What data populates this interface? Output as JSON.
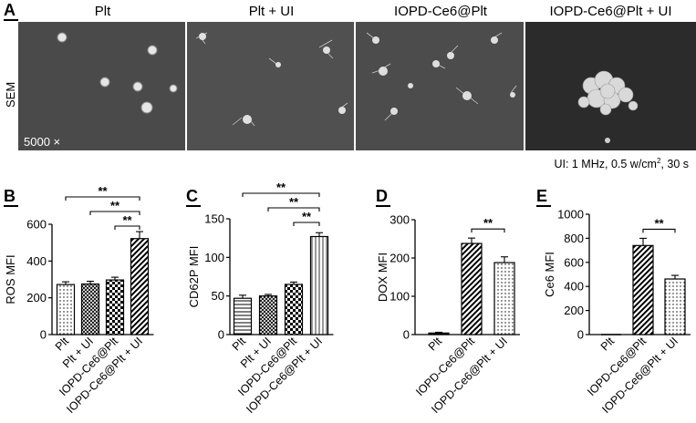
{
  "panel_a": {
    "letter": "A",
    "row_label": "SEM",
    "magnification": "5000 ×",
    "columns": [
      "Plt",
      "Plt + UI",
      "IOPD-Ce6@Plt",
      "IOPD-Ce6@Plt + UI"
    ],
    "ui_condition_prefix": "UI: 1 MHz, 0.5 w/cm",
    "ui_condition_sup": "2",
    "ui_condition_suffix": ", 30 s"
  },
  "colors": {
    "sem_gray": "#4d4d4d",
    "sem_dark": "#2b2b2b",
    "bar_edge": "#000000"
  },
  "chart_data": [
    {
      "panel": "B",
      "type": "bar",
      "categories": [
        "Plt",
        "Plt + UI",
        "IOPD-Ce6@Plt",
        "IOPD-Ce6@Plt + UI"
      ],
      "values": [
        272,
        275,
        297,
        522
      ],
      "errors": [
        15,
        15,
        15,
        38
      ],
      "patterns": [
        "dots",
        "crosshatch",
        "checker",
        "diagonal"
      ],
      "ylabel": "ROS MFI",
      "ylim": [
        0,
        600
      ],
      "yticks": [
        0,
        200,
        400,
        600
      ],
      "significance": [
        {
          "from": 0,
          "to": 3,
          "label": "**"
        },
        {
          "from": 1,
          "to": 3,
          "label": "**"
        },
        {
          "from": 2,
          "to": 3,
          "label": "**"
        }
      ]
    },
    {
      "panel": "C",
      "type": "bar",
      "categories": [
        "Plt",
        "Plt + UI",
        "IOPD-Ce6@Plt",
        "IOPD-Ce6@Plt + UI"
      ],
      "values": [
        47,
        50,
        65,
        127
      ],
      "errors": [
        4,
        2,
        3,
        5
      ],
      "patterns": [
        "hstripes",
        "crosshatch",
        "checker",
        "vstripes"
      ],
      "ylabel": "CD62P MFI",
      "ylim": [
        0,
        150
      ],
      "yticks": [
        0,
        50,
        100,
        150
      ],
      "significance": [
        {
          "from": 0,
          "to": 3,
          "label": "**"
        },
        {
          "from": 1,
          "to": 3,
          "label": "**"
        },
        {
          "from": 2,
          "to": 3,
          "label": "**"
        }
      ]
    },
    {
      "panel": "D",
      "type": "bar",
      "categories": [
        "Plt",
        "IOPD-Ce6@Plt",
        "IOPD-Ce6@Plt + UI"
      ],
      "values": [
        4,
        238,
        188
      ],
      "errors": [
        2,
        14,
        15
      ],
      "patterns": [
        "hstripes",
        "diagonal",
        "dots"
      ],
      "ylabel": "DOX MFI",
      "ylim": [
        0,
        300
      ],
      "yticks": [
        0,
        100,
        200,
        300
      ],
      "significance": [
        {
          "from": 1,
          "to": 2,
          "label": "**"
        }
      ]
    },
    {
      "panel": "E",
      "type": "bar",
      "categories": [
        "Plt",
        "IOPD-Ce6@Plt",
        "IOPD-Ce6@Plt + UI"
      ],
      "values": [
        0,
        740,
        462
      ],
      "errors": [
        0,
        60,
        30
      ],
      "patterns": [
        "none",
        "diagonal",
        "dots"
      ],
      "ylabel": "Ce6 MFI",
      "ylim": [
        0,
        1000
      ],
      "yticks": [
        0,
        200,
        400,
        600,
        800,
        1000
      ],
      "significance": [
        {
          "from": 1,
          "to": 2,
          "label": "**"
        }
      ]
    }
  ]
}
